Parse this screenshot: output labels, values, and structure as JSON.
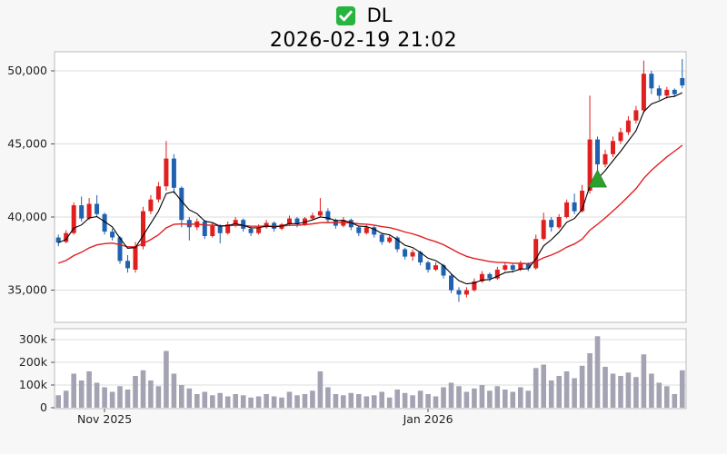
{
  "header": {
    "symbol": "DL",
    "timestamp": "2026-02-19 21:02",
    "checkbox_state": "checked"
  },
  "colors": {
    "up": "#e01f1f",
    "down": "#2062af",
    "ma_fast": "#000000",
    "ma_slow": "#e01f1f",
    "volume": "#a3a3b3",
    "marker": "#2ca02c",
    "marker_edge": "#1d7a1d",
    "grid": "#dddddd",
    "border": "#bbbbbb",
    "tick": "#555555",
    "pane_bg": "#ffffff",
    "icon_green": "#27b540"
  },
  "chart_data": {
    "type": "candlestick",
    "title": "DL",
    "subtitle": "2026-02-19 21:02",
    "price_axis": {
      "min": 32800,
      "max": 51300,
      "ticks": [
        35000,
        40000,
        45000,
        50000
      ],
      "tick_labels": [
        "35,000",
        "40,000",
        "45,000",
        "50,000"
      ]
    },
    "volume_axis": {
      "unit": "k",
      "max": 345,
      "ticks": [
        0,
        100,
        200,
        300
      ],
      "tick_labels": [
        "0",
        "100k",
        "200k",
        "300k"
      ]
    },
    "x_ticks": [
      {
        "index": 6,
        "label": "Nov 2025"
      },
      {
        "index": 48,
        "label": "Jan 2026"
      }
    ],
    "marker": {
      "index": 70,
      "price": 42600,
      "shape": "triangle-up"
    },
    "overlays": {
      "ma_fast": {
        "type": "ema",
        "alpha": 0.333
      },
      "ma_slow": {
        "type": "ema",
        "alpha": 0.09,
        "seed": 36700
      }
    },
    "candles": [
      [
        38600,
        38800,
        38000,
        38250
      ],
      [
        38300,
        39100,
        38200,
        38900
      ],
      [
        38900,
        41000,
        38800,
        40800
      ],
      [
        40800,
        41400,
        39700,
        39900
      ],
      [
        39900,
        41300,
        39800,
        40900
      ],
      [
        40900,
        41500,
        40000,
        40200
      ],
      [
        40200,
        40300,
        38800,
        39000
      ],
      [
        39000,
        39200,
        38400,
        38600
      ],
      [
        38600,
        38700,
        36800,
        37000
      ],
      [
        37000,
        37400,
        36200,
        36500
      ],
      [
        36400,
        38300,
        36200,
        38000
      ],
      [
        38000,
        40700,
        37800,
        40400
      ],
      [
        40400,
        41500,
        40200,
        41200
      ],
      [
        41200,
        42400,
        41000,
        42100
      ],
      [
        42100,
        45200,
        41800,
        44000
      ],
      [
        44000,
        44300,
        41600,
        42000
      ],
      [
        42000,
        42100,
        39300,
        39800
      ],
      [
        39800,
        40000,
        38400,
        39300
      ],
      [
        39300,
        39900,
        39100,
        39700
      ],
      [
        39700,
        39800,
        38500,
        38700
      ],
      [
        38700,
        39600,
        38600,
        39400
      ],
      [
        39400,
        39500,
        38200,
        38900
      ],
      [
        38900,
        39700,
        38800,
        39500
      ],
      [
        39500,
        40000,
        39300,
        39800
      ],
      [
        39800,
        39900,
        39000,
        39200
      ],
      [
        39200,
        39400,
        38700,
        38900
      ],
      [
        38900,
        39500,
        38800,
        39300
      ],
      [
        39300,
        39800,
        39200,
        39600
      ],
      [
        39600,
        39700,
        39000,
        39200
      ],
      [
        39200,
        39600,
        39100,
        39500
      ],
      [
        39500,
        40100,
        39400,
        39900
      ],
      [
        39900,
        40000,
        39300,
        39500
      ],
      [
        39500,
        40000,
        39400,
        39900
      ],
      [
        39900,
        40300,
        39800,
        40100
      ],
      [
        40100,
        41300,
        40000,
        40400
      ],
      [
        40400,
        40600,
        39600,
        39800
      ],
      [
        39800,
        39900,
        39200,
        39400
      ],
      [
        39400,
        40000,
        39300,
        39800
      ],
      [
        39800,
        39900,
        39100,
        39300
      ],
      [
        39300,
        39400,
        38700,
        38900
      ],
      [
        38900,
        39500,
        38800,
        39300
      ],
      [
        39300,
        39400,
        38600,
        38800
      ],
      [
        38800,
        38900,
        38100,
        38300
      ],
      [
        38300,
        38800,
        38200,
        38600
      ],
      [
        38600,
        38700,
        37600,
        37800
      ],
      [
        37800,
        37900,
        37100,
        37300
      ],
      [
        37300,
        37800,
        37000,
        37600
      ],
      [
        37600,
        37700,
        36700,
        36900
      ],
      [
        36900,
        37000,
        36200,
        36400
      ],
      [
        36400,
        36900,
        36300,
        36700
      ],
      [
        36700,
        36800,
        35800,
        36000
      ],
      [
        36000,
        36100,
        34800,
        35000
      ],
      [
        35000,
        35200,
        34200,
        34700
      ],
      [
        34700,
        35200,
        34500,
        35000
      ],
      [
        35000,
        35800,
        34900,
        35600
      ],
      [
        35600,
        36300,
        35500,
        36100
      ],
      [
        36100,
        36200,
        35600,
        35800
      ],
      [
        35800,
        36600,
        35700,
        36400
      ],
      [
        36400,
        36900,
        36300,
        36700
      ],
      [
        36700,
        36800,
        36200,
        36400
      ],
      [
        36400,
        37000,
        36300,
        36800
      ],
      [
        36800,
        36900,
        36300,
        36500
      ],
      [
        36500,
        38800,
        36400,
        38500
      ],
      [
        38500,
        40300,
        38400,
        39800
      ],
      [
        39800,
        40000,
        39000,
        39300
      ],
      [
        39300,
        40200,
        39200,
        40000
      ],
      [
        40000,
        41200,
        39900,
        41000
      ],
      [
        41000,
        41600,
        40200,
        40400
      ],
      [
        40400,
        42200,
        40300,
        41800
      ],
      [
        41800,
        48300,
        41600,
        45300
      ],
      [
        45300,
        45500,
        42800,
        43600
      ],
      [
        43600,
        44600,
        43400,
        44300
      ],
      [
        44300,
        45500,
        44100,
        45200
      ],
      [
        45200,
        46100,
        45000,
        45800
      ],
      [
        45800,
        46900,
        45600,
        46600
      ],
      [
        46600,
        47600,
        46400,
        47300
      ],
      [
        47300,
        50700,
        47100,
        49800
      ],
      [
        49800,
        50000,
        48400,
        48800
      ],
      [
        48800,
        49000,
        48000,
        48300
      ],
      [
        48300,
        48900,
        48100,
        48700
      ],
      [
        48700,
        48800,
        48200,
        48400
      ],
      [
        49500,
        50800,
        48800,
        49000
      ]
    ],
    "volumes": [
      55,
      75,
      150,
      120,
      160,
      110,
      90,
      70,
      95,
      80,
      140,
      165,
      120,
      95,
      250,
      150,
      100,
      85,
      60,
      70,
      55,
      65,
      50,
      60,
      55,
      45,
      50,
      60,
      50,
      45,
      70,
      55,
      60,
      75,
      160,
      90,
      60,
      55,
      65,
      60,
      50,
      55,
      70,
      45,
      80,
      65,
      55,
      75,
      60,
      50,
      90,
      110,
      95,
      70,
      85,
      100,
      75,
      95,
      80,
      70,
      90,
      75,
      175,
      190,
      120,
      140,
      160,
      130,
      185,
      240,
      315,
      180,
      150,
      140,
      155,
      135,
      235,
      150,
      110,
      95,
      60,
      165
    ]
  }
}
